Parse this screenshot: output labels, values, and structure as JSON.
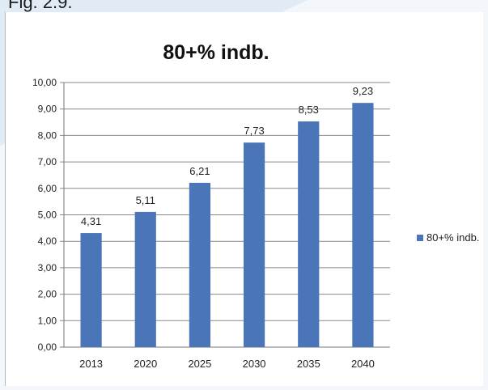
{
  "caption": "Fig.  2.9.",
  "colors": {
    "bar": "#4a76b9",
    "grid": "#8a8a8a",
    "text": "#222222"
  },
  "chart_data": {
    "type": "bar",
    "title": "80+% indb.",
    "xlabel": "",
    "ylabel": "",
    "categories": [
      "2013",
      "2020",
      "2025",
      "2030",
      "2035",
      "2040"
    ],
    "series": [
      {
        "name": "80+% indb.",
        "values": [
          4.31,
          5.11,
          6.21,
          7.73,
          8.53,
          9.23
        ]
      }
    ],
    "data_labels": [
      "4,31",
      "5,11",
      "6,21",
      "7,73",
      "8,53",
      "9,23"
    ],
    "ylim": [
      0,
      10
    ],
    "yticks": [
      "0,00",
      "1,00",
      "2,00",
      "3,00",
      "4,00",
      "5,00",
      "6,00",
      "7,00",
      "8,00",
      "9,00",
      "10,00"
    ],
    "grid": true,
    "legend_position": "right"
  }
}
